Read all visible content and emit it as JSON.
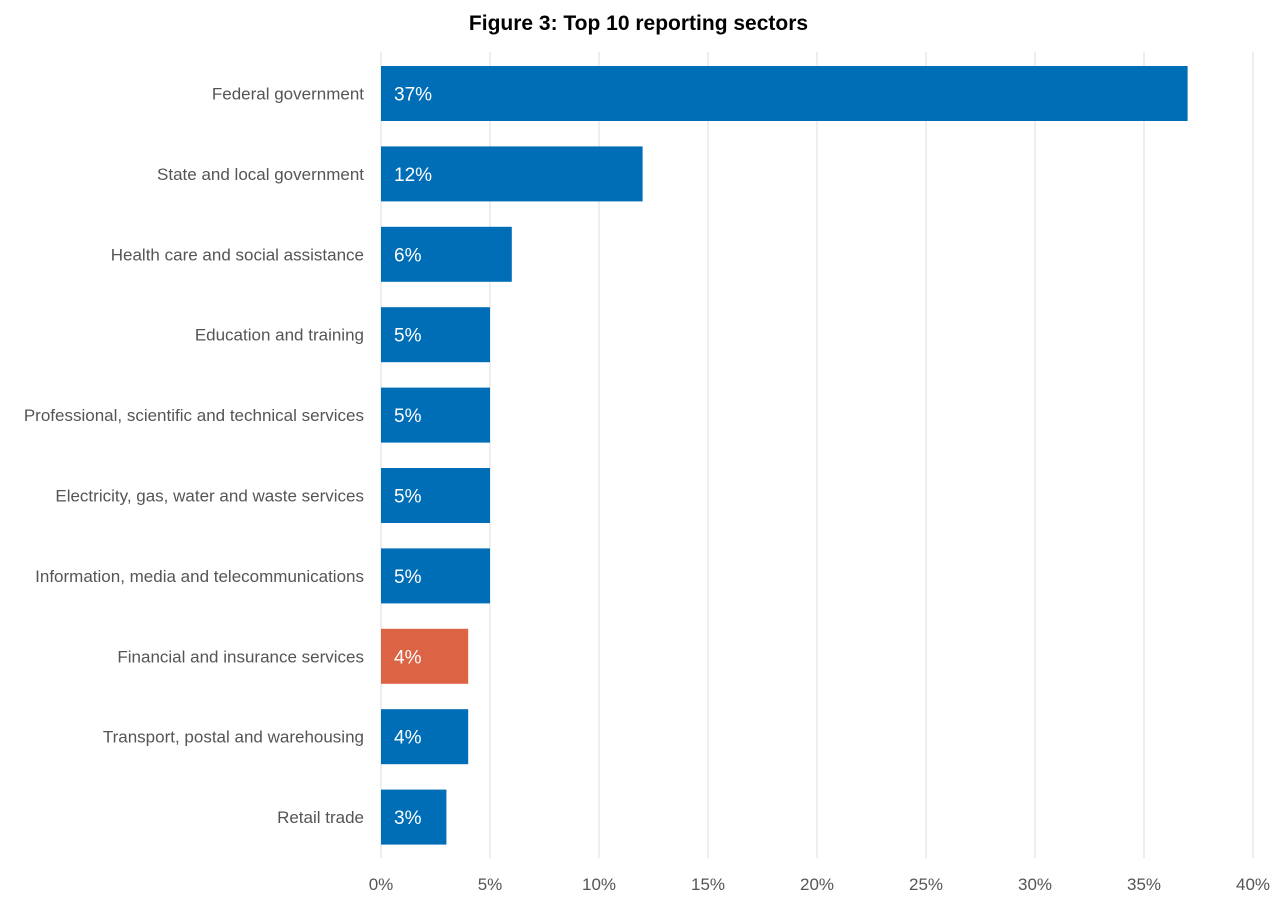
{
  "chart_data": {
    "type": "bar",
    "orientation": "horizontal",
    "title": "Figure 3: Top 10 reporting sectors",
    "xlabel": "",
    "ylabel": "",
    "xlim": [
      0,
      40
    ],
    "ticks": [
      0,
      5,
      10,
      15,
      20,
      25,
      30,
      35,
      40
    ],
    "tick_labels": [
      "0%",
      "5%",
      "10%",
      "15%",
      "20%",
      "25%",
      "30%",
      "35%",
      "40%"
    ],
    "grid": "vertical",
    "legend": "none",
    "categories": [
      "Federal government",
      "State and local government",
      "Health care and social assistance",
      "Education and training",
      "Professional, scientific and technical services",
      "Electricity, gas, water and waste services",
      "Information, media and telecommunications",
      "Financial and insurance services",
      "Transport, postal and warehousing",
      "Retail trade"
    ],
    "values": [
      37,
      12,
      6,
      5,
      5,
      5,
      5,
      4,
      4,
      3
    ],
    "value_labels": [
      "37%",
      "12%",
      "6%",
      "5%",
      "5%",
      "5%",
      "5%",
      "4%",
      "4%",
      "3%"
    ],
    "highlight_index": 7,
    "colors": {
      "bar": "#006DB7",
      "highlight": "#DC6343",
      "grid": "#dddddd"
    }
  }
}
